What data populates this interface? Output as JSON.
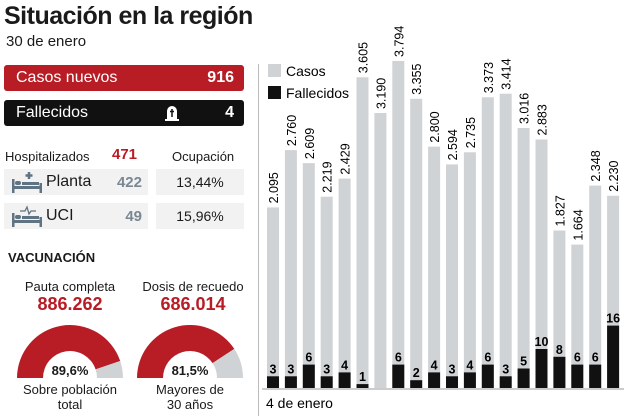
{
  "header": {
    "title": "Situación en la región",
    "date": "30 de enero"
  },
  "summary": {
    "casos_label": "Casos nuevos",
    "casos_value": "916",
    "fallecidos_label": "Fallecidos",
    "fallecidos_value": "4",
    "fallecidos_icon": "tombstone-icon"
  },
  "hospital": {
    "label": "Hospitalizados",
    "total": "471",
    "ocupacion_label": "Ocupación",
    "rows": [
      {
        "label": "Planta",
        "value": "422",
        "ocupacion": "13,44%",
        "icon": "hospital-bed-icon"
      },
      {
        "label": "UCI",
        "value": "49",
        "ocupacion": "15,96%",
        "icon": "icu-bed-icon"
      }
    ]
  },
  "vacunacion": {
    "title": "VACUNACIÓN",
    "gauges": [
      {
        "label": "Pauta completa",
        "value": "886.262",
        "percent_label": "89,6%",
        "percent": 89.6,
        "caption1": "Sobre población",
        "caption2": "total"
      },
      {
        "label": "Dosis de recuedo",
        "value": "686.014",
        "percent_label": "81,5%",
        "percent": 81.5,
        "caption1": "Mayores de",
        "caption2": "30 años"
      }
    ]
  },
  "colors": {
    "red": "#b81c25",
    "black": "#111111",
    "gray": "#d0d3d6"
  },
  "chart_data": {
    "type": "bar",
    "start_label": "4 de enero",
    "legend": [
      "Casos",
      "Fallecidos"
    ],
    "legend_position": "top-left",
    "series": [
      {
        "name": "Casos",
        "values": [
          2095,
          2760,
          2609,
          2219,
          2429,
          3605,
          3190,
          3794,
          3355,
          2800,
          2594,
          2735,
          3373,
          3414,
          3016,
          2883,
          1827,
          1664,
          2348,
          2230
        ],
        "labels": [
          "2.095",
          "2.760",
          "2.609",
          "2.219",
          "2.429",
          "3.605",
          "3.190",
          "3.794",
          "3.355",
          "2.800",
          "2.594",
          "2.735",
          "3.373",
          "3.414",
          "3.016",
          "2.883",
          "1.827",
          "1.664",
          "2.348",
          "2.230"
        ]
      },
      {
        "name": "Fallecidos",
        "values": [
          3,
          3,
          6,
          3,
          4,
          1,
          0,
          6,
          2,
          4,
          3,
          4,
          6,
          3,
          5,
          10,
          8,
          6,
          6,
          16
        ]
      }
    ]
  }
}
